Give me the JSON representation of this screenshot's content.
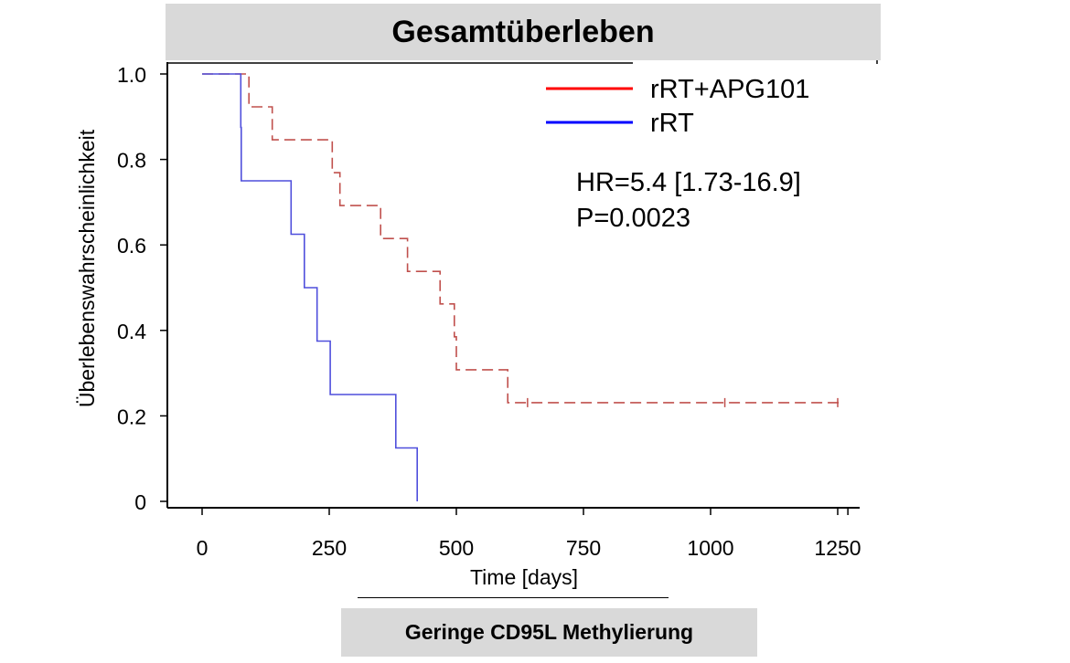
{
  "header": {
    "title": "Gesamtüberleben"
  },
  "footer": {
    "label": "Geringe CD95L Methylierung"
  },
  "stats": {
    "hr": "HR=5.4 [1.73-16.9]",
    "p": "P=0.0023"
  },
  "chart_data": {
    "type": "line",
    "subtype": "kaplan-meier",
    "title": "Gesamtüberleben",
    "xlabel": "Time [days]",
    "ylabel": "Überlebenswahrscheinlichkeit",
    "xtick_labels": [
      {
        "value": 0,
        "label": "0"
      },
      {
        "value": 250,
        "label": "250"
      },
      {
        "value": 500,
        "label": "500"
      },
      {
        "value": 750,
        "label": "750"
      },
      {
        "value": 1000,
        "label": "1000"
      },
      {
        "value": 1250,
        "label": "1250"
      }
    ],
    "ytick_labels": [
      {
        "value": 0,
        "label": "0"
      },
      {
        "value": 0.2,
        "label": "0.2"
      },
      {
        "value": 0.4,
        "label": "0.4"
      },
      {
        "value": 0.6,
        "label": "0.6"
      },
      {
        "value": 0.8,
        "label": "0.8"
      },
      {
        "value": 1.0,
        "label": "1.0"
      }
    ],
    "xlim": [
      -70,
      1270
    ],
    "ylim": [
      0,
      1.0
    ],
    "grid": false,
    "legend_position": "top-right",
    "series": [
      {
        "name": "rRT+APG101",
        "color": "#c0504d",
        "legend_color": "#ff0000",
        "style": "dashed",
        "steps": [
          [
            0,
            1.0
          ],
          [
            92,
            0.923
          ],
          [
            138,
            0.846
          ],
          [
            256,
            0.769
          ],
          [
            271,
            0.692
          ],
          [
            351,
            0.615
          ],
          [
            404,
            0.538
          ],
          [
            468,
            0.462
          ],
          [
            496,
            0.385
          ],
          [
            500,
            0.308
          ],
          [
            601,
            0.231
          ],
          [
            1262,
            0.231
          ]
        ],
        "censored": [
          [
            640,
            0.231
          ],
          [
            1028,
            0.231
          ],
          [
            1250,
            0.231
          ]
        ]
      },
      {
        "name": "rRT",
        "color": "#4f4fdc",
        "legend_color": "#0000ff",
        "style": "solid",
        "steps": [
          [
            0,
            1.0
          ],
          [
            76,
            0.875
          ],
          [
            77,
            0.75
          ],
          [
            175,
            0.625
          ],
          [
            201,
            0.5
          ],
          [
            226,
            0.375
          ],
          [
            252,
            0.25
          ],
          [
            381,
            0.125
          ],
          [
            423,
            0.0
          ]
        ],
        "censored": []
      }
    ]
  }
}
